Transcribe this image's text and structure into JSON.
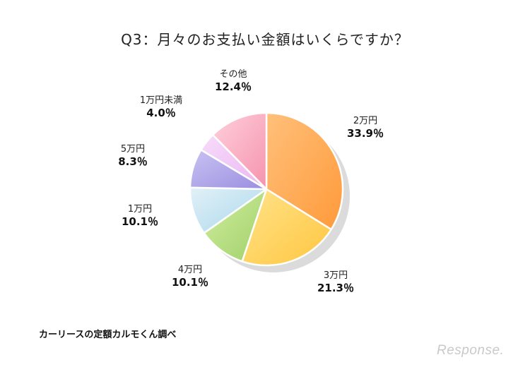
{
  "chart_data": {
    "type": "pie",
    "title": "Q3：月々のお支払い金額はいくらですか？",
    "categories": [
      "2万円",
      "3万円",
      "4万円",
      "1万円",
      "5万円",
      "1万円未満",
      "その他"
    ],
    "values": [
      33.9,
      21.3,
      10.1,
      10.1,
      8.3,
      4.0,
      12.4
    ],
    "value_labels": [
      "33.9％",
      "21.3％",
      "10.1％",
      "10.1％",
      "8.3％",
      "4.0％",
      "12.4％"
    ],
    "colors": [
      [
        "#ffc07a",
        "#ff9a3a"
      ],
      [
        "#ffe38a",
        "#ffc640"
      ],
      [
        "#d2ee9e",
        "#9fd06a"
      ],
      [
        "#e2f1f8",
        "#a9d6ea"
      ],
      [
        "#c9c2f2",
        "#9a8ee0"
      ],
      [
        "#f7dcfa",
        "#eab6f2"
      ],
      [
        "#ffd0dc",
        "#f593ad"
      ]
    ],
    "start_angle_deg": 0,
    "direction": "clockwise",
    "legend": "none"
  },
  "source_note": "カーリースの定額カルモくん調べ",
  "watermark": "Response."
}
